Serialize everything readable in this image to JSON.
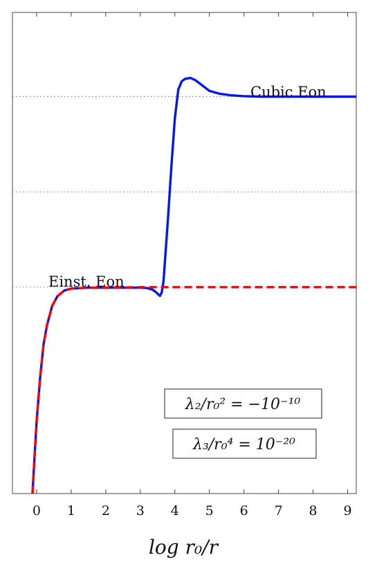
{
  "chart_data": {
    "type": "line",
    "title": "",
    "xlabel": "log r₀/r",
    "ylabel": "",
    "xlim": [
      -0.7,
      9.25
    ],
    "ylim": [
      0,
      1.0
    ],
    "x_ticks": [
      0,
      1,
      2,
      3,
      4,
      5,
      6,
      7,
      8,
      9
    ],
    "x_tick_labels": [
      "0",
      "1",
      "2",
      "3",
      "4",
      "5",
      "6",
      "7",
      "8",
      "9"
    ],
    "reference_lines": [
      0.429,
      0.627,
      0.825
    ],
    "annotations": {
      "einst_label": "Einst. Eon",
      "cubic_label": "Cubic Eon",
      "lambda2_box": "λ₂/r₀² = −10⁻¹⁰",
      "lambda3_box": "λ₃/r₀⁴ = 10⁻²⁰"
    },
    "series": [
      {
        "color": "#0018e8",
        "style": "solid",
        "x": [
          -0.12,
          -0.05,
          0.0,
          0.1,
          0.2,
          0.3,
          0.45,
          0.6,
          0.8,
          1.0,
          1.5,
          2.0,
          2.5,
          3.0,
          3.2,
          3.35,
          3.45,
          3.52,
          3.57,
          3.62,
          3.67,
          3.72,
          3.8,
          3.9,
          4.0,
          4.1,
          4.2,
          4.3,
          4.45,
          4.6,
          4.8,
          5.0,
          5.3,
          5.6,
          6.0,
          6.5,
          7.0,
          8.0,
          9.25
        ],
        "y": [
          0.0,
          0.09,
          0.15,
          0.24,
          0.31,
          0.35,
          0.39,
          0.41,
          0.422,
          0.426,
          0.428,
          0.428,
          0.428,
          0.428,
          0.427,
          0.424,
          0.419,
          0.414,
          0.411,
          0.418,
          0.44,
          0.49,
          0.57,
          0.68,
          0.78,
          0.84,
          0.857,
          0.862,
          0.864,
          0.859,
          0.848,
          0.837,
          0.831,
          0.828,
          0.826,
          0.825,
          0.825,
          0.825,
          0.825
        ]
      },
      {
        "color": "#ff0000",
        "style": "dashed",
        "x": [
          -0.12,
          -0.05,
          0.0,
          0.1,
          0.2,
          0.3,
          0.45,
          0.6,
          0.8,
          1.0,
          1.5,
          2.0,
          3.0,
          4.0,
          5.0,
          6.0,
          7.0,
          8.0,
          9.25
        ],
        "y": [
          0.0,
          0.09,
          0.15,
          0.24,
          0.31,
          0.35,
          0.39,
          0.41,
          0.422,
          0.426,
          0.428,
          0.428,
          0.429,
          0.429,
          0.429,
          0.429,
          0.429,
          0.429,
          0.429
        ]
      }
    ]
  }
}
